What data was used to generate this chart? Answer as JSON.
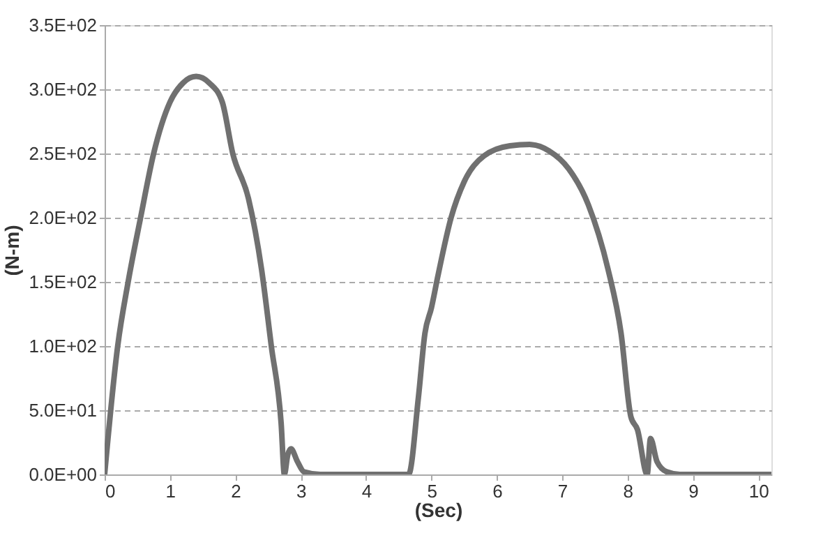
{
  "chart_data": {
    "type": "line",
    "xlabel": "(Sec)",
    "ylabel": "(N-m)",
    "xlim": [
      0,
      10.2
    ],
    "xticks": [
      0,
      1,
      2,
      3,
      4,
      5,
      6,
      7,
      8,
      9,
      10
    ],
    "ylim": [
      0,
      350
    ],
    "yticks": [
      {
        "value": 0,
        "label": "0.0E+00"
      },
      {
        "value": 50,
        "label": "5.0E+01"
      },
      {
        "value": 100,
        "label": "1.0E+02"
      },
      {
        "value": 150,
        "label": "1.5E+02"
      },
      {
        "value": 200,
        "label": "2.0E+02"
      },
      {
        "value": 250,
        "label": "2.5E+02"
      },
      {
        "value": 300,
        "label": "3.0E+02"
      },
      {
        "value": 350,
        "label": "3.5E+02"
      }
    ],
    "grid": "y",
    "line_style": "solid",
    "x": [
      0,
      0.2,
      0.36,
      0.55,
      0.75,
      1.0,
      1.2,
      1.4,
      1.6,
      1.8,
      1.96,
      2.2,
      2.4,
      2.55,
      2.7,
      2.75,
      2.8,
      2.85,
      2.95,
      3.05,
      3.3,
      4.65,
      4.8,
      4.9,
      5.0,
      5.1,
      5.3,
      5.5,
      5.8,
      6.2,
      6.5,
      6.8,
      7.1,
      7.4,
      7.7,
      7.9,
      8.05,
      8.15,
      8.3,
      8.35,
      8.45,
      8.6,
      8.8,
      10.2
    ],
    "series": [
      {
        "color": "#707070",
        "values": [
          0,
          100,
          150,
          200,
          250,
          290,
          305,
          310,
          305,
          290,
          250,
          215,
          160,
          100,
          40,
          0,
          15,
          20,
          10,
          2,
          0,
          0,
          60,
          110,
          130,
          155,
          200,
          228,
          248,
          256,
          257,
          252,
          238,
          210,
          160,
          110,
          45,
          35,
          0,
          28,
          10,
          2,
          0,
          0
        ]
      }
    ]
  }
}
